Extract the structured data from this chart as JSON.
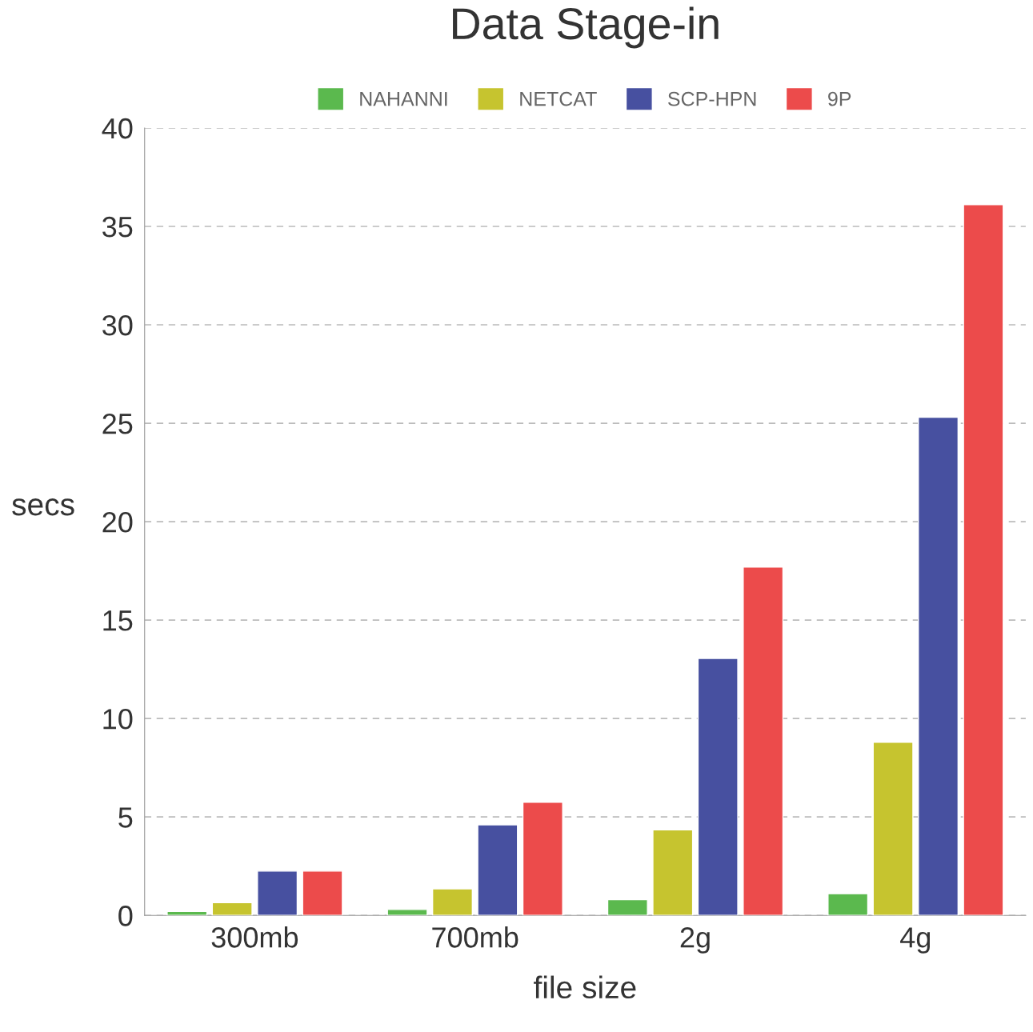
{
  "chart_data": {
    "type": "bar",
    "title": "Data Stage-in",
    "xlabel": "file size",
    "ylabel": "secs",
    "categories": [
      "300mb",
      "700mb",
      "2g",
      "4g"
    ],
    "series": [
      {
        "name": "NAHANNI",
        "color": "#5bb94e",
        "values": [
          0.2,
          0.3,
          0.8,
          1.1
        ]
      },
      {
        "name": "NETCAT",
        "color": "#c6c42f",
        "values": [
          0.65,
          1.35,
          4.35,
          8.8
        ]
      },
      {
        "name": "SCP-HPN",
        "color": "#4750a0",
        "values": [
          2.25,
          4.6,
          13.05,
          25.3
        ]
      },
      {
        "name": "9P",
        "color": "#ec4b4b",
        "values": [
          2.25,
          5.75,
          17.7,
          36.1
        ]
      }
    ],
    "ylim": [
      0,
      40
    ],
    "yticks": [
      0,
      5,
      10,
      15,
      20,
      25,
      30,
      35,
      40
    ],
    "grid": "y",
    "legend": "top"
  }
}
